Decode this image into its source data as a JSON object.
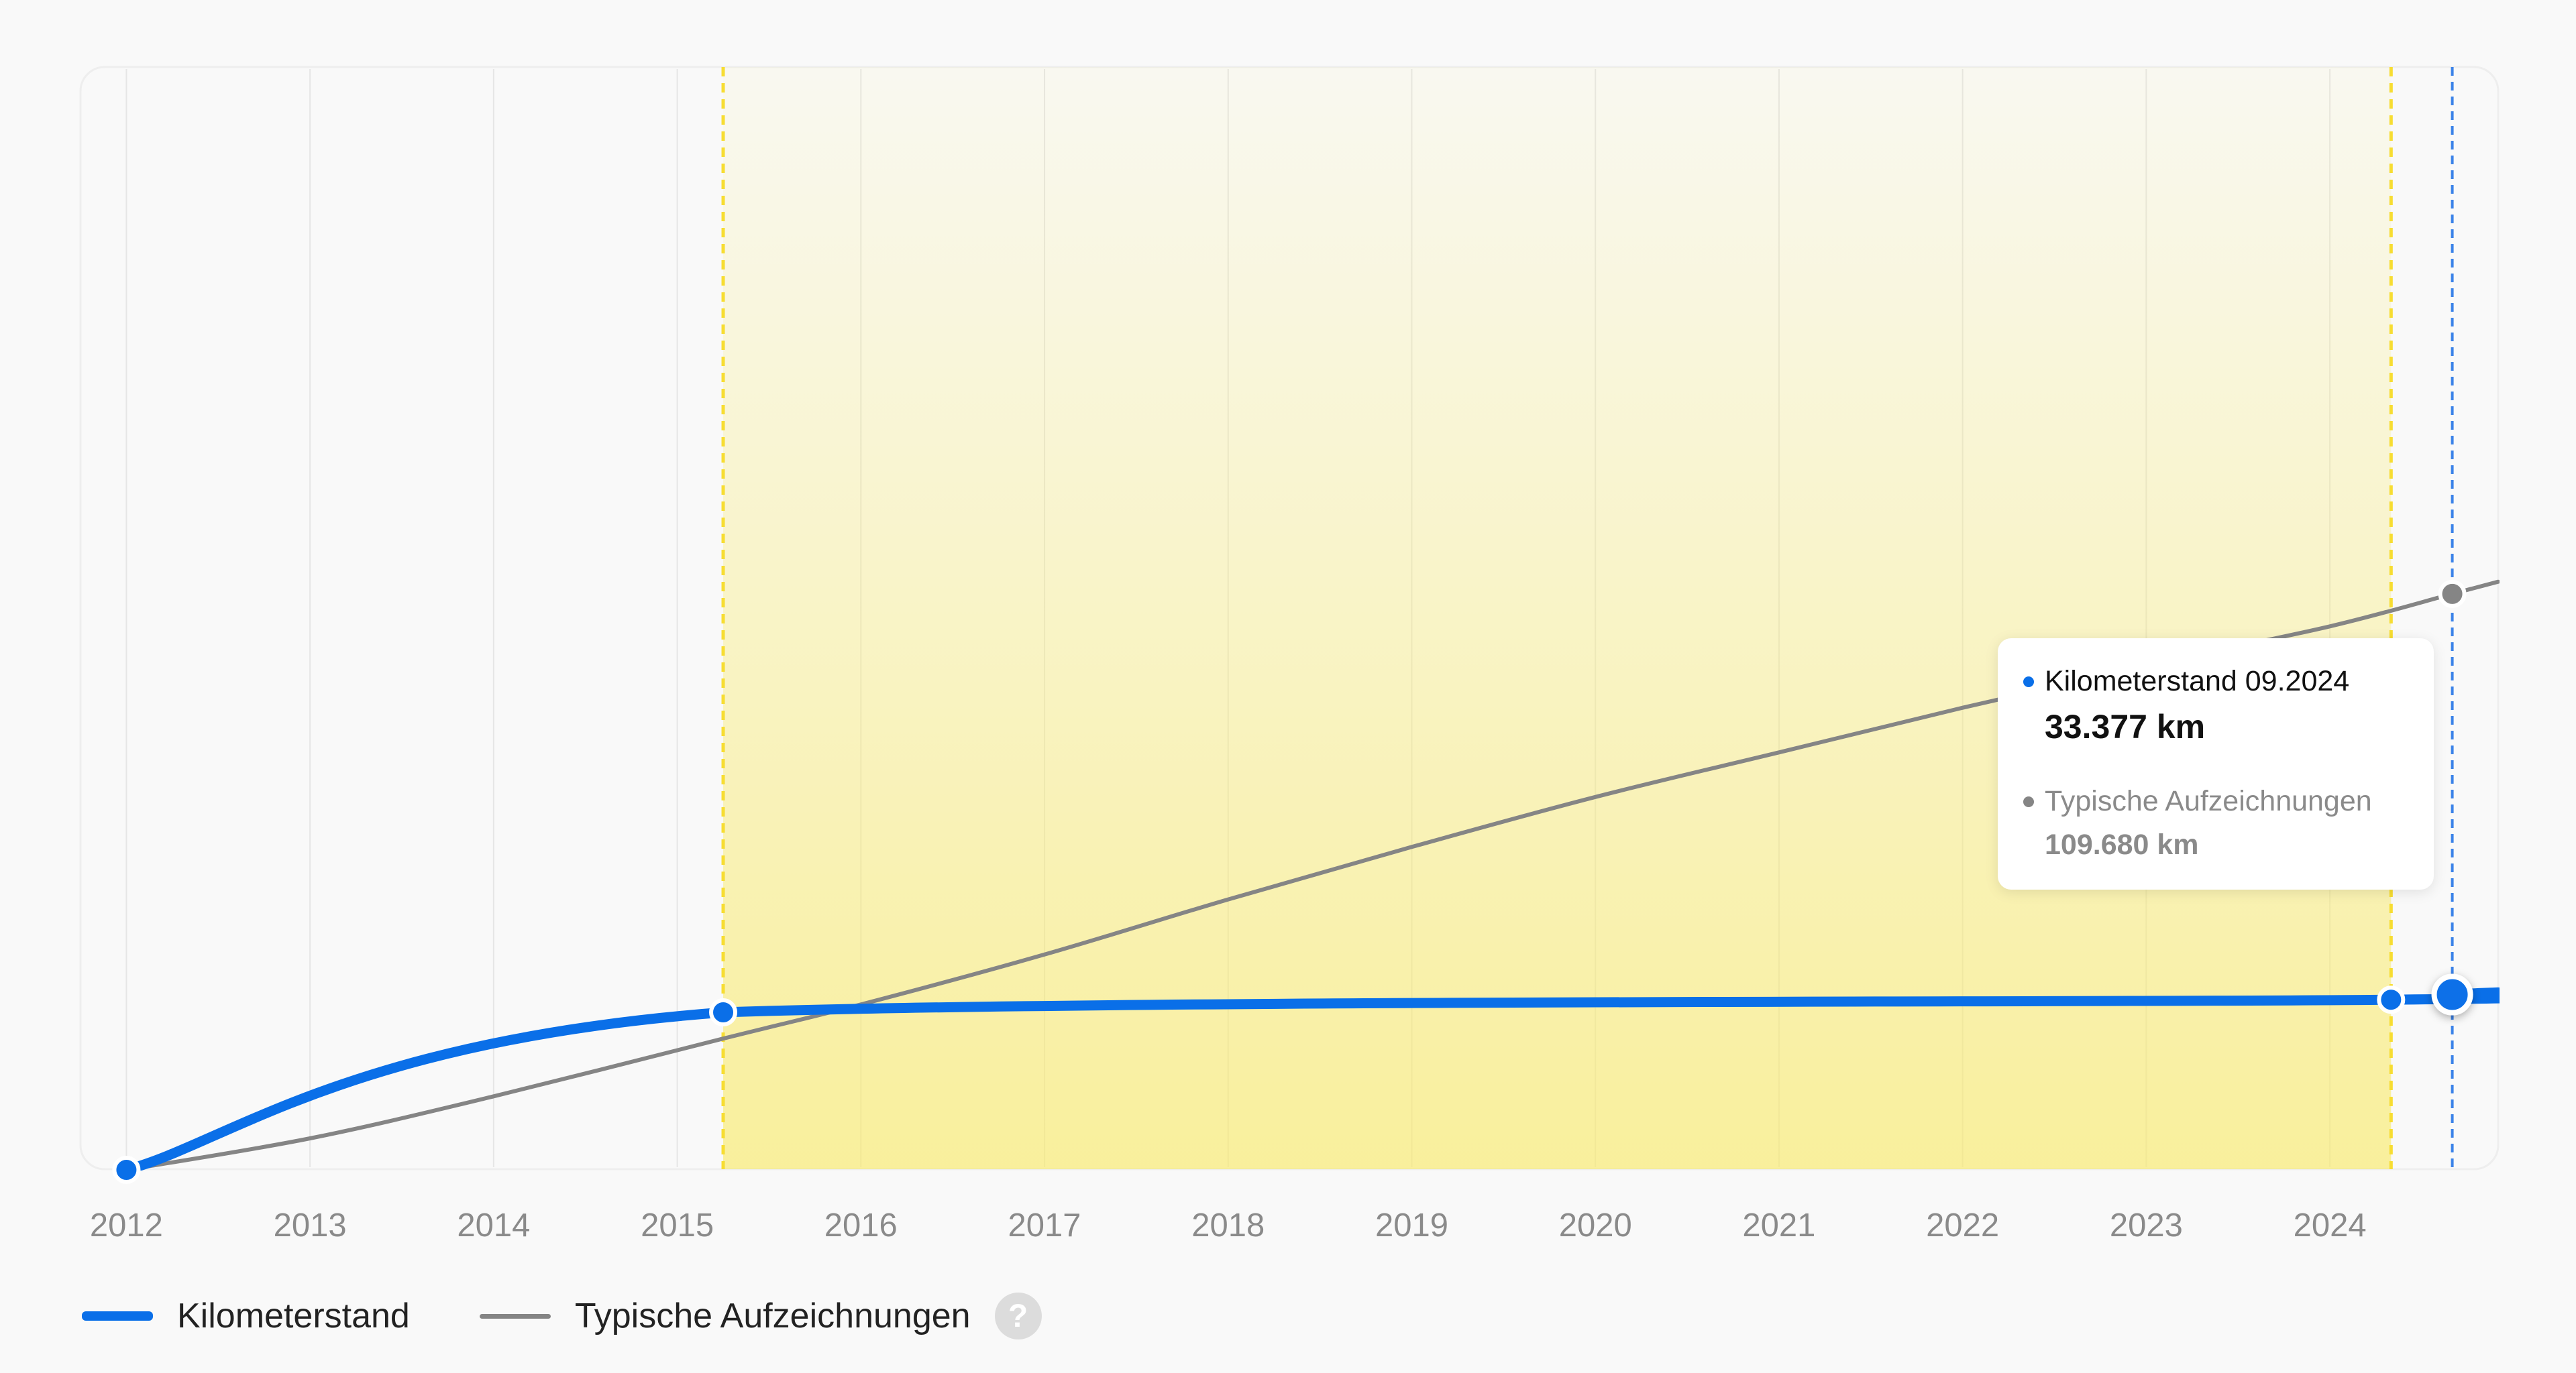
{
  "chart_data": {
    "type": "line",
    "x_axis": {
      "ticks": [
        "2012",
        "2013",
        "2014",
        "2015",
        "2016",
        "2017",
        "2018",
        "2019",
        "2020",
        "2021",
        "2022",
        "2023",
        "2024"
      ],
      "range": [
        "2011-10",
        "2024-12"
      ]
    },
    "y_axis": {
      "range_km": [
        0,
        210000
      ],
      "visible": false
    },
    "grid": {
      "vertical": true,
      "horizontal": false
    },
    "series": [
      {
        "name": "Kilometerstand",
        "color": "#0a6fe8",
        "points": [
          {
            "x": "2012-01",
            "y": 0,
            "marker": true
          },
          {
            "x": "2015-04",
            "y": 30000,
            "marker": true
          },
          {
            "x": "2024-05",
            "y": 32400,
            "marker": true
          },
          {
            "x": "2024-09",
            "y": 33377,
            "marker": true,
            "active": true
          },
          {
            "x": "2024-12",
            "y": 33800,
            "marker": false
          }
        ]
      },
      {
        "name": "Typische Aufzeichnungen",
        "color": "#858585",
        "points": [
          {
            "x": "2012-01",
            "y": 0
          },
          {
            "x": "2013-01",
            "y": 6000
          },
          {
            "x": "2014-01",
            "y": 14000
          },
          {
            "x": "2015-04",
            "y": 25000
          },
          {
            "x": "2016-01",
            "y": 31500
          },
          {
            "x": "2017-01",
            "y": 41000
          },
          {
            "x": "2018-01",
            "y": 51500
          },
          {
            "x": "2019-01",
            "y": 61500
          },
          {
            "x": "2020-01",
            "y": 71000
          },
          {
            "x": "2021-01",
            "y": 79500
          },
          {
            "x": "2022-01",
            "y": 88000
          },
          {
            "x": "2023-01",
            "y": 96000
          },
          {
            "x": "2024-01",
            "y": 103500
          },
          {
            "x": "2024-09",
            "y": 109680,
            "marker": true
          },
          {
            "x": "2024-12",
            "y": 112000
          }
        ]
      }
    ],
    "highlight_period": {
      "from": "2015-04",
      "to": "2024-05",
      "color": "#f9ea6a",
      "border_color": "#f7dd32"
    },
    "cursor": {
      "x": "2024-09",
      "color": "#3a82e8"
    },
    "tooltip": {
      "primary_label": "Kilometerstand 09.2024",
      "primary_value": "33.377 km",
      "secondary_label": "Typische Aufzeichnungen",
      "secondary_value": "109.680 km"
    }
  },
  "legend": {
    "items": [
      {
        "label": "Kilometerstand",
        "color": "#0a6fe8"
      },
      {
        "label": "Typische Aufzeichnungen",
        "color": "#858585"
      }
    ],
    "help_icon": "help-icon",
    "help_glyph": "?"
  }
}
